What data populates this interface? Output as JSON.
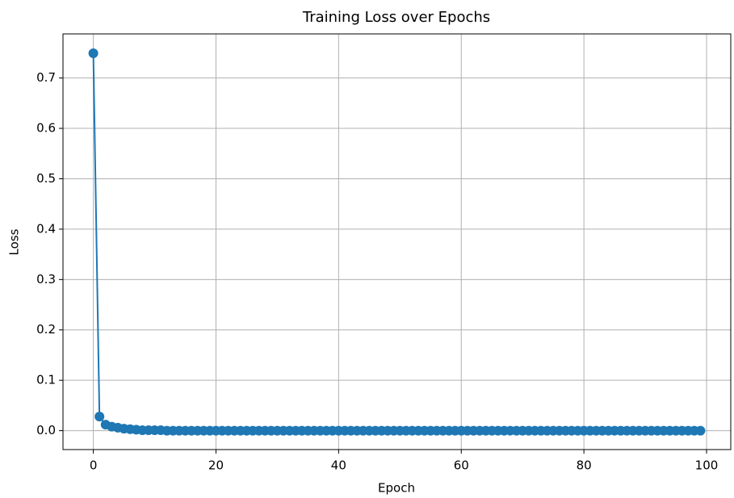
{
  "chart_data": {
    "type": "line",
    "title": "Training Loss over Epochs",
    "x_label": "Epoch",
    "y_label": "Loss",
    "x": [
      0,
      1,
      2,
      3,
      4,
      5,
      6,
      7,
      8,
      9,
      10,
      11,
      12,
      13,
      14,
      15,
      16,
      17,
      18,
      19,
      20,
      21,
      22,
      23,
      24,
      25,
      26,
      27,
      28,
      29,
      30,
      31,
      32,
      33,
      34,
      35,
      36,
      37,
      38,
      39,
      40,
      41,
      42,
      43,
      44,
      45,
      46,
      47,
      48,
      49,
      50,
      51,
      52,
      53,
      54,
      55,
      56,
      57,
      58,
      59,
      60,
      61,
      62,
      63,
      64,
      65,
      66,
      67,
      68,
      69,
      70,
      71,
      72,
      73,
      74,
      75,
      76,
      77,
      78,
      79,
      80,
      81,
      82,
      83,
      84,
      85,
      86,
      87,
      88,
      89,
      90,
      91,
      92,
      93,
      94,
      95,
      96,
      97,
      98,
      99
    ],
    "series": [
      {
        "color": "#1f77b4",
        "values": [
          0.749,
          0.028,
          0.012,
          0.008,
          0.006,
          0.004,
          0.003,
          0.002,
          0.001,
          0.001,
          0.001,
          0.001,
          0,
          0,
          0,
          0,
          0,
          0,
          0,
          0,
          0,
          0,
          0,
          0,
          0,
          0,
          0,
          0,
          0,
          0,
          0,
          0,
          0,
          0,
          0,
          0,
          0,
          0,
          0,
          0,
          0,
          0,
          0,
          0,
          0,
          0,
          0,
          0,
          0,
          0,
          0,
          0,
          0,
          0,
          0,
          0,
          0,
          0,
          0,
          0,
          0,
          0,
          0,
          0,
          0,
          0,
          0,
          0,
          0,
          0,
          0,
          0,
          0,
          0,
          0,
          0,
          0,
          0,
          0,
          0,
          0,
          0,
          0,
          0,
          0,
          0,
          0,
          0,
          0,
          0,
          0,
          0,
          0,
          0,
          0,
          0,
          0,
          0,
          0,
          0
        ]
      }
    ],
    "xlim": [
      -4.95,
      103.95
    ],
    "ylim": [
      -0.0375,
      0.7875
    ],
    "xticks": [
      0,
      20,
      40,
      60,
      80,
      100
    ],
    "yticks": [
      {
        "value": 0,
        "label": "0.0"
      },
      0.1,
      0.2,
      0.3,
      0.4,
      0.5,
      0.6,
      0.7
    ],
    "grid": true,
    "marker": "circle"
  }
}
